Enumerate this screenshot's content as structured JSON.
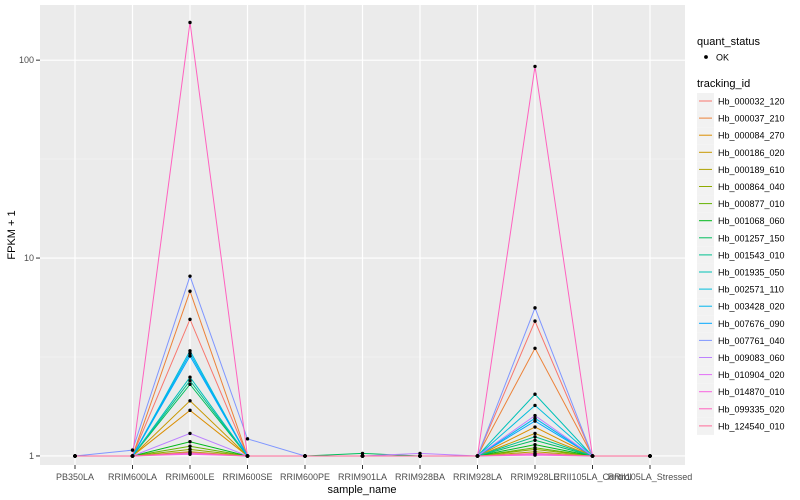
{
  "chart_data": {
    "type": "line",
    "xlabel": "sample_name",
    "ylabel": "FPKM + 1",
    "yscale": "log10",
    "ylim": [
      0.9,
      190
    ],
    "yticks": [
      {
        "value": 1,
        "label": "1"
      },
      {
        "value": 10,
        "label": "10"
      },
      {
        "value": 100,
        "label": "100"
      }
    ],
    "categories": [
      "PB350LA",
      "RRIM600LA",
      "RRIM600LE",
      "RRIM600SE",
      "RRIM600PE",
      "RRIM901LA",
      "RRIM928BA",
      "RRIM928LA",
      "RRIM928LE",
      "RRII105LA_Control",
      "RRII105LA_Stressed"
    ],
    "panel_background": "#EBEBEB",
    "grid": true,
    "legend_position": "right",
    "legend": {
      "quant_status_title": "quant_status",
      "quant_status_items": [
        "OK"
      ],
      "tracking_title": "tracking_id"
    },
    "series": [
      {
        "name": "Hb_000032_120",
        "color": "#F8766D",
        "values": [
          1,
          1,
          4.9,
          1,
          1,
          1,
          1,
          1,
          4.8,
          1,
          1
        ]
      },
      {
        "name": "Hb_000037_210",
        "color": "#EC8239",
        "values": [
          1,
          1,
          6.8,
          1,
          1,
          1,
          1,
          1,
          3.5,
          1,
          1
        ]
      },
      {
        "name": "Hb_000084_270",
        "color": "#DB8E00",
        "values": [
          1,
          1,
          1.7,
          1,
          1,
          1,
          1,
          1,
          1.4,
          1,
          1
        ]
      },
      {
        "name": "Hb_000186_020",
        "color": "#C79800",
        "values": [
          1,
          1,
          1.9,
          1,
          1,
          1,
          1,
          1,
          1.3,
          1,
          1
        ]
      },
      {
        "name": "Hb_000189_610",
        "color": "#AEA200",
        "values": [
          1,
          1,
          1.05,
          1,
          1,
          1,
          1,
          1,
          1.05,
          1,
          1
        ]
      },
      {
        "name": "Hb_000864_040",
        "color": "#8FAA00",
        "values": [
          1,
          1,
          1.08,
          1,
          1,
          1,
          1,
          1,
          1.08,
          1,
          1
        ]
      },
      {
        "name": "Hb_000877_010",
        "color": "#64B200",
        "values": [
          1,
          1,
          1.12,
          1,
          1,
          1,
          1,
          1,
          1.1,
          1,
          1
        ]
      },
      {
        "name": "Hb_001068_060",
        "color": "#00B81B",
        "values": [
          1,
          1,
          1.18,
          1,
          1,
          1,
          1,
          1,
          1.14,
          1,
          1
        ]
      },
      {
        "name": "Hb_001257_150",
        "color": "#00BD5C",
        "values": [
          1,
          1,
          2.3,
          1,
          1,
          1.03,
          1,
          1,
          1.2,
          1,
          1
        ]
      },
      {
        "name": "Hb_001543_010",
        "color": "#00C08E",
        "values": [
          1,
          1,
          2.4,
          1,
          1,
          1,
          1,
          1,
          1.25,
          1,
          1
        ]
      },
      {
        "name": "Hb_001935_050",
        "color": "#00C1B7",
        "values": [
          1,
          1,
          2.5,
          1,
          1,
          1,
          1,
          1,
          2.05,
          1,
          1
        ]
      },
      {
        "name": "Hb_002571_110",
        "color": "#00BDDC",
        "values": [
          1,
          1,
          3.4,
          1,
          1,
          1,
          1,
          1,
          1.8,
          1,
          1
        ]
      },
      {
        "name": "Hb_003428_020",
        "color": "#00B5EE",
        "values": [
          1,
          1,
          3.3,
          1,
          1,
          1,
          1,
          1,
          1.55,
          1,
          1
        ]
      },
      {
        "name": "Hb_007676_090",
        "color": "#00A7FF",
        "values": [
          1,
          1,
          3.2,
          1,
          1,
          1,
          1,
          1,
          1.5,
          1,
          1
        ]
      },
      {
        "name": "Hb_007761_040",
        "color": "#7F96FF",
        "values": [
          1,
          1.07,
          8.1,
          1.22,
          1,
          1,
          1,
          1,
          5.6,
          1,
          1
        ]
      },
      {
        "name": "Hb_009083_060",
        "color": "#BC81FF",
        "values": [
          1,
          1,
          1.3,
          1,
          1,
          1,
          1.03,
          1,
          1.6,
          1,
          1
        ]
      },
      {
        "name": "Hb_010904_020",
        "color": "#E26EF7",
        "values": [
          1,
          1,
          1.03,
          1,
          1,
          1,
          1,
          1,
          1.02,
          1,
          1
        ]
      },
      {
        "name": "Hb_014870_010",
        "color": "#F863DF",
        "values": [
          1,
          1,
          1.02,
          1,
          1,
          1,
          1,
          1,
          1.01,
          1,
          1
        ]
      },
      {
        "name": "Hb_099335_020",
        "color": "#FF62BF",
        "values": [
          1,
          1,
          155,
          1,
          1,
          1,
          1,
          1,
          93,
          1,
          1
        ]
      },
      {
        "name": "Hb_124540_010",
        "color": "#FF6A98",
        "values": [
          1,
          1,
          1.04,
          1,
          1,
          1,
          1,
          1,
          1.03,
          1,
          1
        ]
      }
    ]
  }
}
